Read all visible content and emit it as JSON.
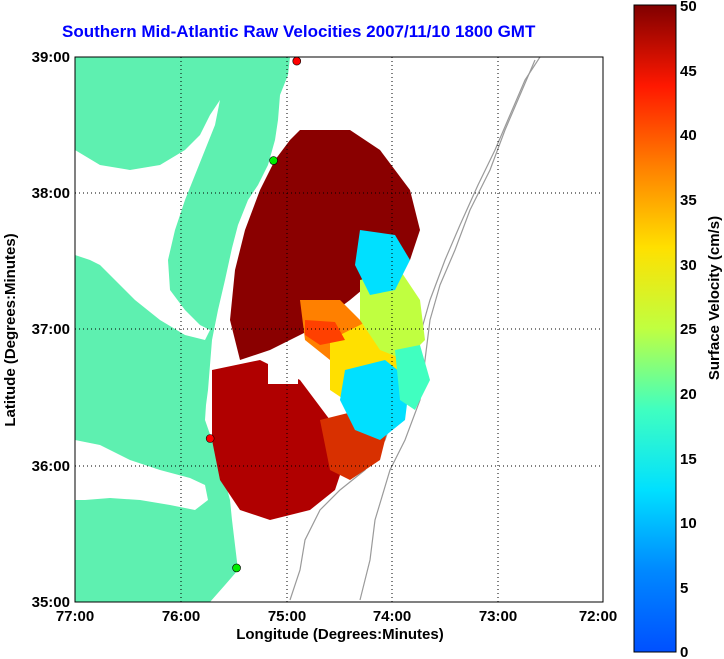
{
  "title": "Southern Mid-Atlantic Raw Velocities 2007/11/10 1800 GMT",
  "map": {
    "x_axis_label": "Longitude (Degrees:Minutes)",
    "y_axis_label": "Latitude (Degrees:Minutes)",
    "x_ticks": [
      "77:00",
      "76:00",
      "75:00",
      "74:00",
      "73:00",
      "72:00"
    ],
    "y_ticks": [
      "39:00",
      "38:00",
      "37:00",
      "36:00",
      "35:00"
    ],
    "lon_range": [
      -77,
      -72
    ],
    "lat_range": [
      35,
      39
    ],
    "grid": "dotted",
    "land_color": "#5ef0b0",
    "water_color": "#ffffff",
    "station_color": "#00ee00",
    "station_alt_color": "#ff0000",
    "stations": [
      {
        "lon": -74.9,
        "lat": 38.97,
        "color": "#ff0000"
      },
      {
        "lon": -75.12,
        "lat": 38.24,
        "color": "#00ee00"
      },
      {
        "lon": -75.72,
        "lat": 36.2,
        "color": "#ff0000"
      },
      {
        "lon": -75.47,
        "lat": 35.25,
        "color": "#00ee00"
      }
    ]
  },
  "colorbar": {
    "label": "Surface Velocity (cm/s)",
    "ticks": [
      "50",
      "45",
      "40",
      "35",
      "30",
      "25",
      "20",
      "15",
      "10",
      "5",
      "0"
    ],
    "range": [
      0,
      50
    ],
    "colormap": "jet"
  }
}
